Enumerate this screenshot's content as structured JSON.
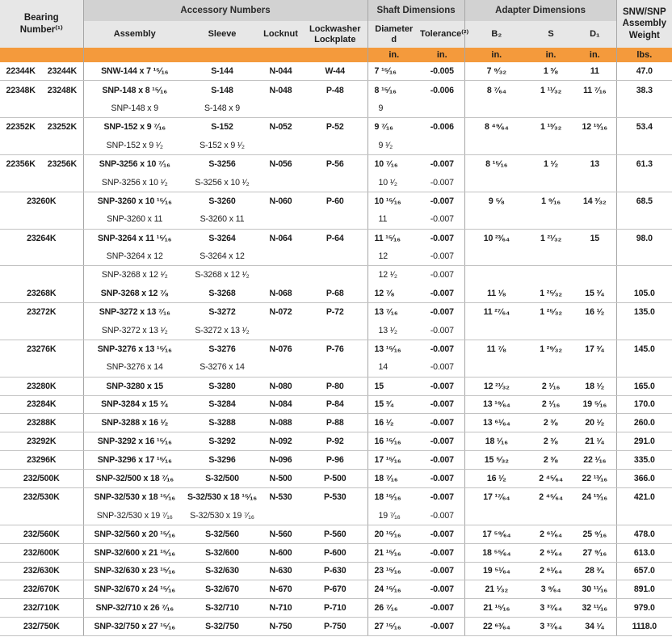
{
  "header": {
    "bearing": "Bearing\nNumber⁽¹⁾",
    "groups": {
      "accessory": "Accessory Numbers",
      "shaft": "Shaft Dimensions",
      "adapter": "Adapter Dimensions"
    },
    "columns": {
      "assembly": "Assembly",
      "sleeve": "Sleeve",
      "locknut": "Locknut",
      "lockwasher": "Lockwasher\nLockplate",
      "diameter": "Diameter\nd",
      "tolerance": "Tolerance⁽²⁾",
      "b2": "B₂",
      "s": "S",
      "d1": "D₁"
    },
    "weight": "SNW/SNP\nAssembly\nWeight",
    "units": {
      "inch": "in.",
      "lbs": "lbs."
    }
  },
  "colors": {
    "units_band": "#f49a3c",
    "group_band": "#d2d2d2",
    "subheader_band": "#e7e7e7"
  },
  "rows": [
    {
      "bearing": [
        "22344K",
        "23244K"
      ],
      "assembly": "SNW-144 x 7 ¹⁵⁄₁₆",
      "sleeve": "S-144",
      "locknut": "N-044",
      "lockwasher": "W-44",
      "diameter": "7 ¹⁵⁄₁₆",
      "tolerance": "-0.005",
      "b2": "7 ⁹⁄₃₂",
      "s": "1 ³⁄₈",
      "d1": "11",
      "weight": "47.0",
      "main": true,
      "group_end": true
    },
    {
      "bearing": [
        "22348K",
        "23248K"
      ],
      "assembly": "SNP-148 x 8 ¹⁵⁄₁₆",
      "sleeve": "S-148",
      "locknut": "N-048",
      "lockwasher": "P-48",
      "diameter": "8 ¹⁵⁄₁₆",
      "tolerance": "-0.006",
      "b2": "8 ⁷⁄₆₄",
      "s": "1 ¹¹⁄₃₂",
      "d1": "11 ⁷⁄₁₆",
      "weight": "38.3",
      "main": true,
      "group_end": false
    },
    {
      "bearing": [],
      "assembly": "SNP-148 x 9",
      "sleeve": "S-148 x 9",
      "locknut": "",
      "lockwasher": "",
      "diameter": "9",
      "tolerance": "",
      "b2": "",
      "s": "",
      "d1": "",
      "weight": "",
      "main": false,
      "group_end": true
    },
    {
      "bearing": [
        "22352K",
        "23252K"
      ],
      "assembly": "SNP-152 x 9 ⁷⁄₁₆",
      "sleeve": "S-152",
      "locknut": "N-052",
      "lockwasher": "P-52",
      "diameter": "9 ⁷⁄₁₆",
      "tolerance": "-0.006",
      "b2": "8 ⁴⁹⁄₆₄",
      "s": "1 ¹³⁄₃₂",
      "d1": "12 ¹³⁄₁₆",
      "weight": "53.4",
      "main": true,
      "group_end": false
    },
    {
      "bearing": [],
      "assembly": "SNP-152 x 9 ¹⁄₂",
      "sleeve": "S-152 x 9 ¹⁄₂",
      "locknut": "",
      "lockwasher": "",
      "diameter": "9 ¹⁄₂",
      "tolerance": "",
      "b2": "",
      "s": "",
      "d1": "",
      "weight": "",
      "main": false,
      "group_end": true
    },
    {
      "bearing": [
        "22356K",
        "23256K"
      ],
      "assembly": "SNP-3256 x 10 ⁷⁄₁₆",
      "sleeve": "S-3256",
      "locknut": "N-056",
      "lockwasher": "P-56",
      "diameter": "10 ⁷⁄₁₆",
      "tolerance": "-0.007",
      "b2": "8 ¹⁵⁄₁₆",
      "s": "1 ¹⁄₂",
      "d1": "13",
      "weight": "61.3",
      "main": true,
      "group_end": false
    },
    {
      "bearing": [],
      "assembly": "SNP-3256 x 10 ¹⁄₂",
      "sleeve": "S-3256 x 10 ¹⁄₂",
      "locknut": "",
      "lockwasher": "",
      "diameter": "10 ¹⁄₂",
      "tolerance": "-0.007",
      "b2": "",
      "s": "",
      "d1": "",
      "weight": "",
      "main": false,
      "group_end": true
    },
    {
      "bearing": [
        "23260K"
      ],
      "assembly": "SNP-3260 x 10 ¹⁵⁄₁₆",
      "sleeve": "S-3260",
      "locknut": "N-060",
      "lockwasher": "P-60",
      "diameter": "10 ¹⁵⁄₁₆",
      "tolerance": "-0.007",
      "b2": "9 ⁵⁄₈",
      "s": "1 ⁹⁄₁₆",
      "d1": "14 ³⁄₃₂",
      "weight": "68.5",
      "main": true,
      "group_end": false
    },
    {
      "bearing": [],
      "assembly": "SNP-3260 x 11",
      "sleeve": "S-3260 x 11",
      "locknut": "",
      "lockwasher": "",
      "diameter": "11",
      "tolerance": "-0.007",
      "b2": "",
      "s": "",
      "d1": "",
      "weight": "",
      "main": false,
      "group_end": true
    },
    {
      "bearing": [
        "23264K"
      ],
      "assembly": "SNP-3264 x 11 ¹⁵⁄₁₆",
      "sleeve": "S-3264",
      "locknut": "N-064",
      "lockwasher": "P-64",
      "diameter": "11 ¹⁵⁄₁₆",
      "tolerance": "-0.007",
      "b2": "10 ²³⁄₆₄",
      "s": "1 ²¹⁄₃₂",
      "d1": "15",
      "weight": "98.0",
      "main": true,
      "group_end": false
    },
    {
      "bearing": [],
      "assembly": "SNP-3264 x 12",
      "sleeve": "S-3264 x 12",
      "locknut": "",
      "lockwasher": "",
      "diameter": "12",
      "tolerance": "-0.007",
      "b2": "",
      "s": "",
      "d1": "",
      "weight": "",
      "main": false,
      "group_end": true
    },
    {
      "bearing": [],
      "assembly": "SNP-3268 x 12 ¹⁄₂",
      "sleeve": "S-3268 x 12 ¹⁄₂",
      "locknut": "",
      "lockwasher": "",
      "diameter": "12 ¹⁄₂",
      "tolerance": "-0.007",
      "b2": "",
      "s": "",
      "d1": "",
      "weight": "",
      "main": false,
      "group_end": false
    },
    {
      "bearing": [
        "23268K"
      ],
      "assembly": "SNP-3268 x 12 ⁷⁄₈",
      "sleeve": "S-3268",
      "locknut": "N-068",
      "lockwasher": "P-68",
      "diameter": "12 ⁷⁄₈",
      "tolerance": "-0.007",
      "b2": "11 ¹⁄₈",
      "s": "1 ²⁵⁄₃₂",
      "d1": "15 ³⁄₄",
      "weight": "105.0",
      "main": true,
      "group_end": true
    },
    {
      "bearing": [
        "23272K"
      ],
      "assembly": "SNP-3272 x 13 ⁷⁄₁₆",
      "sleeve": "S-3272",
      "locknut": "N-072",
      "lockwasher": "P-72",
      "diameter": "13 ⁷⁄₁₆",
      "tolerance": "-0.007",
      "b2": "11 ²⁷⁄₆₄",
      "s": "1 ²⁵⁄₃₂",
      "d1": "16 ¹⁄₂",
      "weight": "135.0",
      "main": true,
      "group_end": false
    },
    {
      "bearing": [],
      "assembly": "SNP-3272 x 13 ¹⁄₂",
      "sleeve": "S-3272 x 13 ¹⁄₂",
      "locknut": "",
      "lockwasher": "",
      "diameter": "13 ¹⁄₂",
      "tolerance": "-0.007",
      "b2": "",
      "s": "",
      "d1": "",
      "weight": "",
      "main": false,
      "group_end": true
    },
    {
      "bearing": [
        "23276K"
      ],
      "assembly": "SNP-3276 x 13 ¹⁵⁄₁₆",
      "sleeve": "S-3276",
      "locknut": "N-076",
      "lockwasher": "P-76",
      "diameter": "13 ¹⁵⁄₁₆",
      "tolerance": "-0.007",
      "b2": "11 ⁷⁄₈",
      "s": "1 ²⁹⁄₃₂",
      "d1": "17 ³⁄₄",
      "weight": "145.0",
      "main": true,
      "group_end": false
    },
    {
      "bearing": [],
      "assembly": "SNP-3276 x 14",
      "sleeve": "S-3276 x 14",
      "locknut": "",
      "lockwasher": "",
      "diameter": "14",
      "tolerance": "-0.007",
      "b2": "",
      "s": "",
      "d1": "",
      "weight": "",
      "main": false,
      "group_end": true
    },
    {
      "bearing": [
        "23280K"
      ],
      "assembly": "SNP-3280 x 15",
      "sleeve": "S-3280",
      "locknut": "N-080",
      "lockwasher": "P-80",
      "diameter": "15",
      "tolerance": "-0.007",
      "b2": "12 ²¹⁄₃₂",
      "s": "2 ¹⁄₁₆",
      "d1": "18 ¹⁄₂",
      "weight": "165.0",
      "main": true,
      "group_end": true
    },
    {
      "bearing": [
        "23284K"
      ],
      "assembly": "SNP-3284 x 15 ³⁄₄",
      "sleeve": "S-3284",
      "locknut": "N-084",
      "lockwasher": "P-84",
      "diameter": "15 ³⁄₄",
      "tolerance": "-0.007",
      "b2": "13 ¹⁹⁄₆₄",
      "s": "2 ¹⁄₁₆",
      "d1": "19 ⁵⁄₁₆",
      "weight": "170.0",
      "main": true,
      "group_end": true
    },
    {
      "bearing": [
        "23288K"
      ],
      "assembly": "SNP-3288 x 16 ¹⁄₂",
      "sleeve": "S-3288",
      "locknut": "N-088",
      "lockwasher": "P-88",
      "diameter": "16 ¹⁄₂",
      "tolerance": "-0.007",
      "b2": "13 ⁶¹⁄₆₄",
      "s": "2 ³⁄₈",
      "d1": "20 ¹⁄₂",
      "weight": "260.0",
      "main": true,
      "group_end": true
    },
    {
      "bearing": [
        "23292K"
      ],
      "assembly": "SNP-3292 x 16 ¹⁵⁄₁₆",
      "sleeve": "S-3292",
      "locknut": "N-092",
      "lockwasher": "P-92",
      "diameter": "16 ¹⁵⁄₁₆",
      "tolerance": "-0.007",
      "b2": "18 ¹⁄₁₆",
      "s": "2 ³⁄₈",
      "d1": "21 ¹⁄₄",
      "weight": "291.0",
      "main": true,
      "group_end": true
    },
    {
      "bearing": [
        "23296K"
      ],
      "assembly": "SNP-3296 x 17 ¹⁵⁄₁₆",
      "sleeve": "S-3296",
      "locknut": "N-096",
      "lockwasher": "P-96",
      "diameter": "17 ¹⁵⁄₁₆",
      "tolerance": "-0.007",
      "b2": "15 ⁵⁄₃₂",
      "s": "2 ³⁄₈",
      "d1": "22 ¹⁄₁₆",
      "weight": "335.0",
      "main": true,
      "group_end": true
    },
    {
      "bearing": [
        "232/500K"
      ],
      "assembly": "SNP-32/500 x 18 ⁷⁄₁₆",
      "sleeve": "S-32/500",
      "locknut": "N-500",
      "lockwasher": "P-500",
      "diameter": "18 ⁷⁄₁₆",
      "tolerance": "-0.007",
      "b2": "16 ¹⁄₂",
      "s": "2 ⁴⁵⁄₆₄",
      "d1": "22 ¹³⁄₁₆",
      "weight": "366.0",
      "main": true,
      "group_end": true
    },
    {
      "bearing": [
        "232/530K"
      ],
      "assembly": "SNP-32/530 x 18 ¹⁵⁄₁₆",
      "sleeve": "S-32/530 x 18 ¹⁵⁄₁₆",
      "locknut": "N-530",
      "lockwasher": "P-530",
      "diameter": "18 ¹⁵⁄₁₆",
      "tolerance": "-0.007",
      "b2": "17 ¹⁷⁄₆₄",
      "s": "2 ⁴⁵⁄₆₄",
      "d1": "24 ¹³⁄₁₆",
      "weight": "421.0",
      "main": true,
      "group_end": false
    },
    {
      "bearing": [],
      "assembly": "SNP-32/530 x 19 ⁷⁄₁₆",
      "sleeve": "S-32/530 x 19 ⁷⁄₁₆",
      "locknut": "",
      "lockwasher": "",
      "diameter": "19 ⁷⁄₁₆",
      "tolerance": "-0.007",
      "b2": "",
      "s": "",
      "d1": "",
      "weight": "",
      "main": false,
      "group_end": true
    },
    {
      "bearing": [
        "232/560K"
      ],
      "assembly": "SNP-32/560 x 20 ¹⁵⁄₁₆",
      "sleeve": "S-32/560",
      "locknut": "N-560",
      "lockwasher": "P-560",
      "diameter": "20 ¹⁵⁄₁₆",
      "tolerance": "-0.007",
      "b2": "17 ⁵⁹⁄₆₄",
      "s": "2 ⁶¹⁄₆₄",
      "d1": "25 ⁹⁄₁₆",
      "weight": "478.0",
      "main": true,
      "group_end": true
    },
    {
      "bearing": [
        "232/600K"
      ],
      "assembly": "SNP-32/600 x 21 ¹⁵⁄₁₆",
      "sleeve": "S-32/600",
      "locknut": "N-600",
      "lockwasher": "P-600",
      "diameter": "21 ¹⁵⁄₁₆",
      "tolerance": "-0.007",
      "b2": "18 ⁵⁵⁄₆₄",
      "s": "2 ⁶¹⁄₆₄",
      "d1": "27 ⁹⁄₁₆",
      "weight": "613.0",
      "main": true,
      "group_end": true
    },
    {
      "bearing": [
        "232/630K"
      ],
      "assembly": "SNP-32/630 x 23 ¹⁵⁄₁₆",
      "sleeve": "S-32/630",
      "locknut": "N-630",
      "lockwasher": "P-630",
      "diameter": "23 ¹⁵⁄₁₆",
      "tolerance": "-0.007",
      "b2": "19 ⁵¹⁄₆₄",
      "s": "2 ⁶¹⁄₆₄",
      "d1": "28 ³⁄₄",
      "weight": "657.0",
      "main": true,
      "group_end": true
    },
    {
      "bearing": [
        "232/670K"
      ],
      "assembly": "SNP-32/670 x 24 ¹⁵⁄₁₆",
      "sleeve": "S-32/670",
      "locknut": "N-670",
      "lockwasher": "P-670",
      "diameter": "24 ¹⁵⁄₁₆",
      "tolerance": "-0.007",
      "b2": "21 ¹⁄₃₂",
      "s": "3 ⁹⁄₆₄",
      "d1": "30 ¹¹⁄₁₆",
      "weight": "891.0",
      "main": true,
      "group_end": true
    },
    {
      "bearing": [
        "232/710K"
      ],
      "assembly": "SNP-32/710 x 26 ⁷⁄₁₆",
      "sleeve": "S-32/710",
      "locknut": "N-710",
      "lockwasher": "P-710",
      "diameter": "26 ⁷⁄₁₆",
      "tolerance": "-0.007",
      "b2": "21 ¹⁵⁄₁₆",
      "s": "3 ³⁷⁄₆₄",
      "d1": "32 ¹¹⁄₁₆",
      "weight": "979.0",
      "main": true,
      "group_end": true
    },
    {
      "bearing": [
        "232/750K"
      ],
      "assembly": "SNP-32/750 x 27 ¹⁵⁄₁₆",
      "sleeve": "S-32/750",
      "locknut": "N-750",
      "lockwasher": "P-750",
      "diameter": "27 ¹⁵⁄₁₆",
      "tolerance": "-0.007",
      "b2": "22 ⁶³⁄₆₄",
      "s": "3 ³⁷⁄₆₄",
      "d1": "34 ¹⁄₄",
      "weight": "1118.0",
      "main": true,
      "group_end": true
    }
  ]
}
